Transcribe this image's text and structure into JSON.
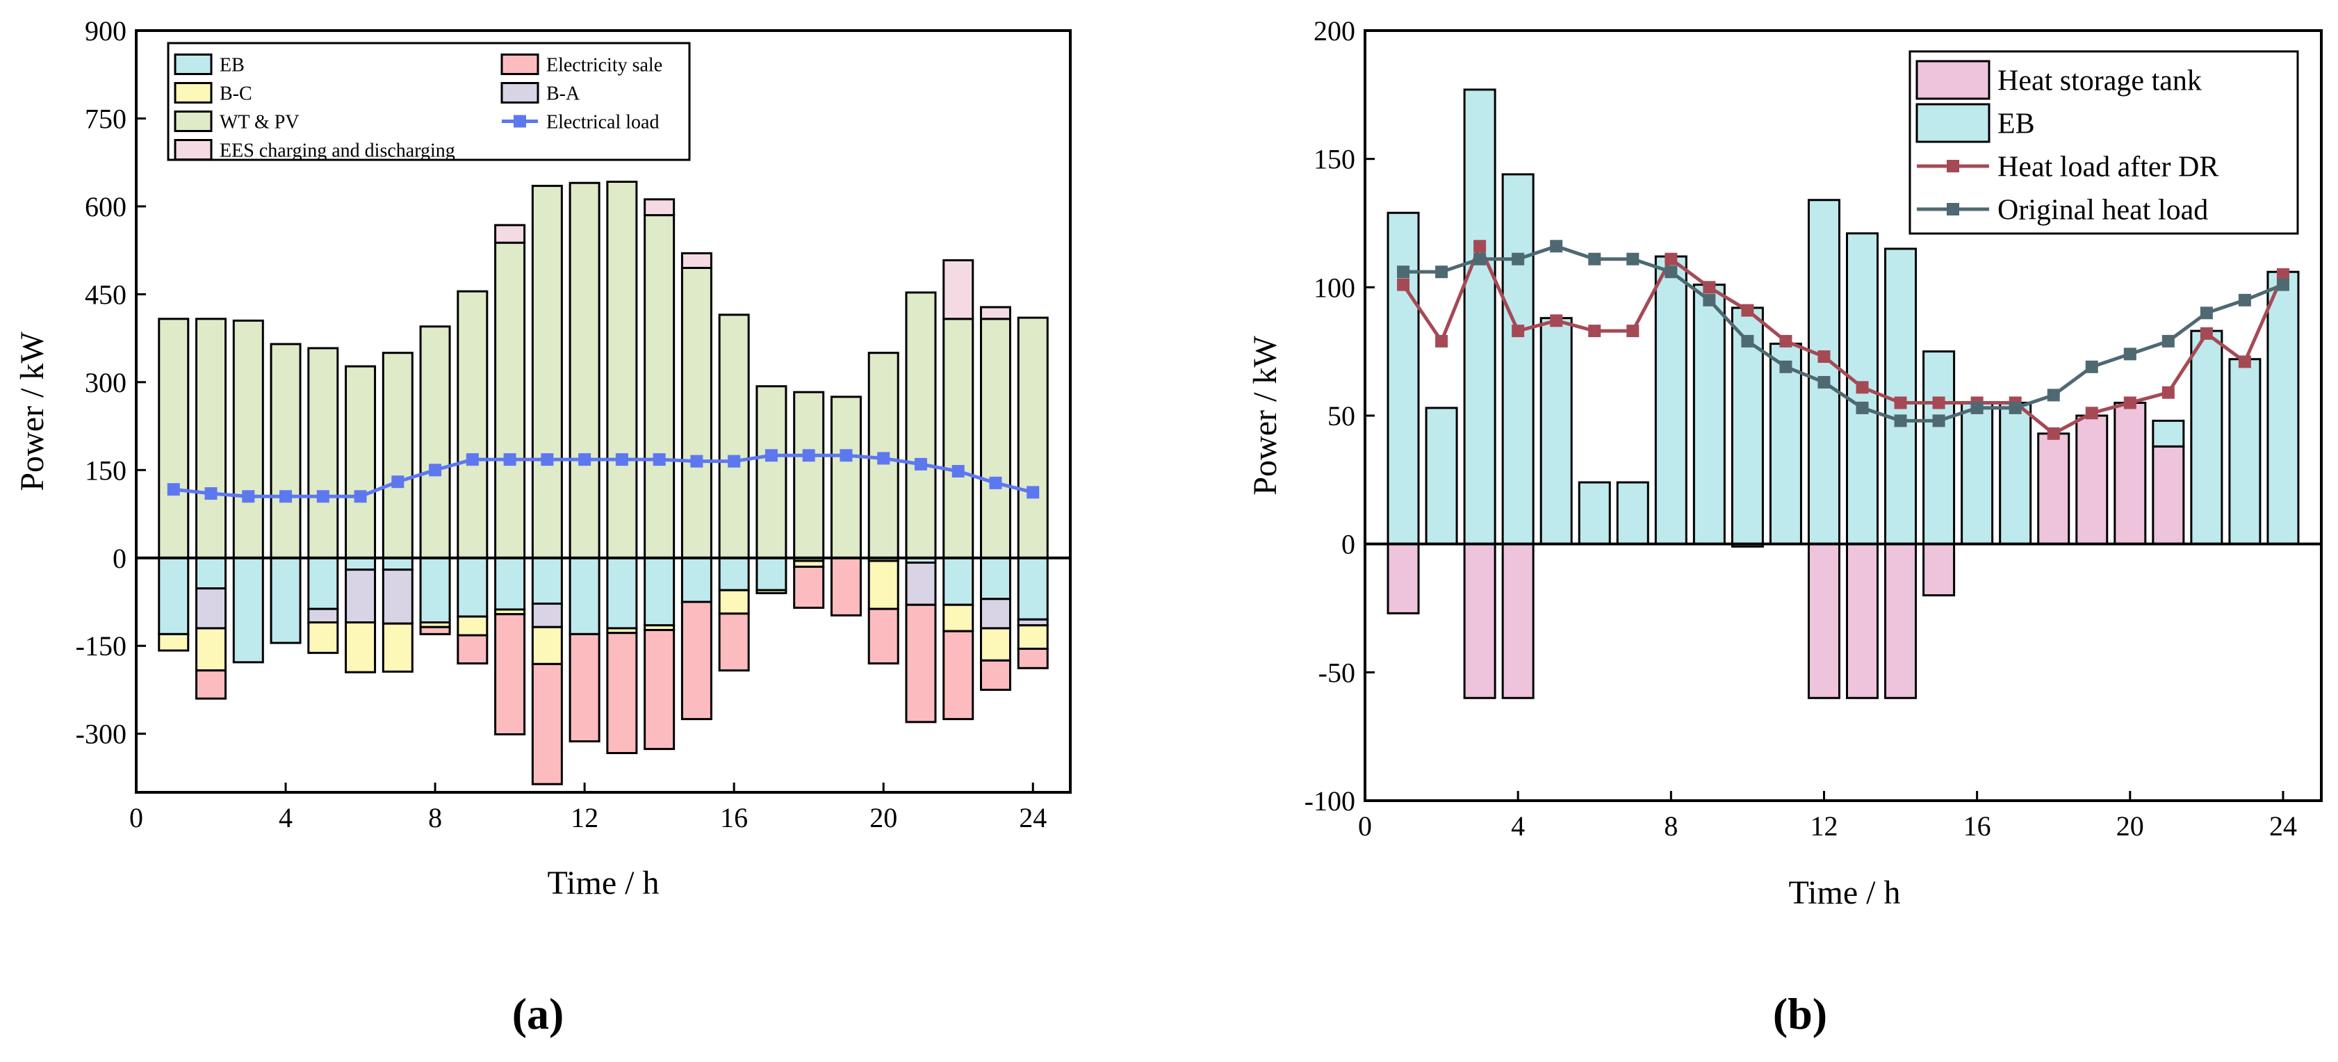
{
  "colors": {
    "eb": "#bfeaed",
    "bc": "#fdf7b8",
    "wtpv": "#dfeac8",
    "ees": "#f4dbe3",
    "sale": "#fcbcbf",
    "ba": "#d8d4e6",
    "load_a": "#5d78ef",
    "tank": "#eec3dc",
    "eb_b": "#bfeaed",
    "dr": "#a54a55",
    "orig": "#4f6972"
  },
  "chart_data": [
    {
      "type": "bar",
      "stacked": true,
      "panel_label": "(a)",
      "xlabel": "Time / h",
      "ylabel": "Power / kW",
      "xlim": [
        0,
        25
      ],
      "ylim": [
        -400,
        900
      ],
      "xticks": [
        0,
        4,
        8,
        12,
        16,
        20,
        24
      ],
      "yticks": [
        -300,
        -150,
        0,
        150,
        300,
        450,
        600,
        750,
        900
      ],
      "legend_position": "top",
      "x": [
        1,
        2,
        3,
        4,
        5,
        6,
        7,
        8,
        9,
        10,
        11,
        12,
        13,
        14,
        15,
        16,
        17,
        18,
        19,
        20,
        21,
        22,
        23,
        24
      ],
      "positive_series": [
        {
          "key": "wtpv",
          "name": "WT & PV",
          "values": [
            408,
            408,
            405,
            365,
            358,
            327,
            350,
            395,
            455,
            538,
            635,
            640,
            642,
            585,
            495,
            415,
            293,
            283,
            275,
            350,
            453,
            408,
            408,
            410
          ]
        },
        {
          "key": "ees",
          "name": "EES charging and discharging",
          "values": [
            0,
            0,
            0,
            0,
            0,
            0,
            0,
            0,
            0,
            30,
            0,
            0,
            0,
            27,
            25,
            0,
            0,
            0,
            0,
            0,
            0,
            100,
            20,
            0
          ]
        }
      ],
      "negative_series": [
        {
          "key": "eb",
          "name": "EB",
          "values": [
            -130,
            -52,
            -178,
            -145,
            -87,
            -20,
            -20,
            -110,
            -100,
            -88,
            -78,
            -130,
            -120,
            -115,
            -75,
            -55,
            -55,
            -5,
            0,
            -5,
            -8,
            -80,
            -70,
            -105
          ]
        },
        {
          "key": "ba",
          "name": "B-A",
          "values": [
            0,
            -68,
            0,
            0,
            -23,
            -90,
            -92,
            0,
            0,
            0,
            -40,
            0,
            0,
            0,
            0,
            0,
            0,
            0,
            0,
            0,
            -72,
            0,
            -50,
            -10
          ]
        },
        {
          "key": "bc",
          "name": "B-C",
          "values": [
            -28,
            -72,
            0,
            0,
            -52,
            -85,
            -82,
            -8,
            -32,
            -8,
            -63,
            0,
            -8,
            -8,
            0,
            -40,
            -5,
            -10,
            0,
            -82,
            0,
            -45,
            -55,
            -40
          ]
        },
        {
          "key": "sale",
          "name": "Electricity sale",
          "values": [
            0,
            -48,
            0,
            0,
            0,
            0,
            0,
            -12,
            -48,
            -205,
            -205,
            -183,
            -205,
            -203,
            -200,
            -97,
            0,
            -70,
            -98,
            -93,
            -200,
            -150,
            -50,
            -33
          ]
        }
      ],
      "line": {
        "key": "load_a",
        "name": "Electrical load",
        "values": [
          117,
          110,
          105,
          105,
          105,
          105,
          130,
          150,
          168,
          168,
          168,
          168,
          168,
          168,
          165,
          165,
          175,
          175,
          175,
          170,
          160,
          148,
          128,
          112
        ]
      },
      "legend": [
        {
          "key": "eb",
          "name": "EB",
          "kind": "box"
        },
        {
          "key": "sale",
          "name": "Electricity sale",
          "kind": "box"
        },
        {
          "key": "bc",
          "name": "B-C",
          "kind": "box"
        },
        {
          "key": "ba",
          "name": "B-A",
          "kind": "box"
        },
        {
          "key": "wtpv",
          "name": "WT & PV",
          "kind": "box"
        },
        {
          "key": "load_a",
          "name": "Electrical load",
          "kind": "line"
        },
        {
          "key": "ees",
          "name": "EES charging and discharging",
          "kind": "box"
        }
      ]
    },
    {
      "type": "bar",
      "stacked": true,
      "panel_label": "(b)",
      "xlabel": "Time / h",
      "ylabel": "Power / kW",
      "xlim": [
        0,
        25
      ],
      "ylim": [
        -100,
        200
      ],
      "xticks": [
        0,
        4,
        8,
        12,
        16,
        20,
        24
      ],
      "yticks": [
        -100,
        -50,
        0,
        50,
        100,
        150,
        200
      ],
      "legend_position": "top-right",
      "x": [
        1,
        2,
        3,
        4,
        5,
        6,
        7,
        8,
        9,
        10,
        11,
        12,
        13,
        14,
        15,
        16,
        17,
        18,
        19,
        20,
        21,
        22,
        23,
        24
      ],
      "positive_series": [
        {
          "key": "tank",
          "name": "Heat storage tank",
          "values": [
            0,
            0,
            0,
            0,
            0,
            0,
            0,
            0,
            0,
            0,
            0,
            0,
            0,
            0,
            0,
            0,
            0,
            43,
            50,
            55,
            38,
            0,
            0,
            0
          ]
        },
        {
          "key": "eb_b",
          "name": "EB",
          "values": [
            129,
            53,
            177,
            144,
            88,
            24,
            24,
            112,
            101,
            92,
            78,
            134,
            121,
            115,
            75,
            55,
            55,
            0,
            0,
            0,
            10,
            83,
            72,
            106
          ]
        }
      ],
      "negative_series": [
        {
          "key": "tank",
          "name": "Heat storage tank",
          "values": [
            -27,
            0,
            -60,
            -60,
            0,
            0,
            0,
            0,
            0,
            -1,
            0,
            -60,
            -60,
            -60,
            -20,
            0,
            0,
            0,
            0,
            0,
            0,
            0,
            0,
            0
          ]
        }
      ],
      "lines": [
        {
          "key": "dr",
          "name": "Heat load after DR",
          "values": [
            101,
            79,
            116,
            83,
            87,
            83,
            83,
            111,
            100,
            91,
            79,
            73,
            61,
            55,
            55,
            55,
            55,
            43,
            51,
            55,
            59,
            82,
            71,
            105
          ]
        },
        {
          "key": "orig",
          "name": "Original heat load",
          "values": [
            106,
            106,
            111,
            111,
            116,
            111,
            111,
            106,
            95,
            79,
            69,
            63,
            53,
            48,
            48,
            53,
            53,
            58,
            69,
            74,
            79,
            90,
            95,
            101
          ]
        }
      ],
      "legend": [
        {
          "key": "tank",
          "name": "Heat storage tank",
          "kind": "box"
        },
        {
          "key": "eb_b",
          "name": "EB",
          "kind": "box"
        },
        {
          "key": "dr",
          "name": "Heat load after DR",
          "kind": "line"
        },
        {
          "key": "orig",
          "name": "Original heat load",
          "kind": "line"
        }
      ]
    }
  ]
}
